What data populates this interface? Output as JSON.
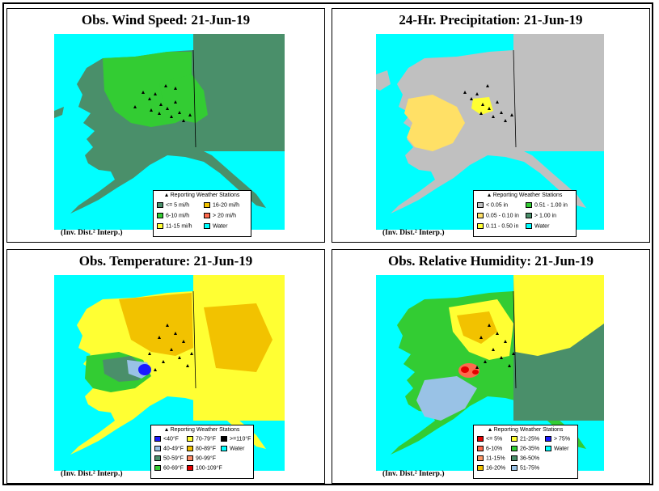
{
  "panels": [
    {
      "title": "Obs. Wind Speed:   21-Jun-19",
      "interp": "(Inv. Dist.² Interp.)",
      "legend_title": "Reporting Weather Stations",
      "legend": [
        {
          "label": "<= 5 mi/h",
          "color": "#4a8f6a"
        },
        {
          "label": "16-20 mi/h",
          "color": "#f2c200"
        },
        {
          "label": "6-10 mi/h",
          "color": "#33cc33"
        },
        {
          "label": "> 20 mi/h",
          "color": "#ff6a4d"
        },
        {
          "label": "11-15 mi/h",
          "color": "#ffff33"
        },
        {
          "label": "Water",
          "color": "#00ffff"
        }
      ]
    },
    {
      "title": "24-Hr. Precipitation:   21-Jun-19",
      "interp": "(Inv. Dist.² Interp.)",
      "legend_title": "Reporting Weather Stations",
      "legend": [
        {
          "label": "< 0.05 in",
          "color": "#c0c0c0"
        },
        {
          "label": "0.51 - 1.00 in",
          "color": "#33cc33"
        },
        {
          "label": "0.05 - 0.10 in",
          "color": "#ffe066"
        },
        {
          "label": "> 1.00 in",
          "color": "#4a8f6a"
        },
        {
          "label": "0.11 - 0.50 in",
          "color": "#ffff33"
        },
        {
          "label": "Water",
          "color": "#00ffff"
        }
      ]
    },
    {
      "title": "Obs. Temperature:   21-Jun-19",
      "interp": "(Inv. Dist.² Interp.)",
      "legend_title": "Reporting Weather Stations",
      "legend": [
        {
          "label": "<40°F",
          "color": "#1a1aff"
        },
        {
          "label": "70-79°F",
          "color": "#ffff33"
        },
        {
          "label": ">=110°F",
          "color": "#000000"
        },
        {
          "label": "40-49°F",
          "color": "#99c2e6"
        },
        {
          "label": "80-89°F",
          "color": "#f2c200"
        },
        {
          "label": "Water",
          "color": "#00ffff"
        },
        {
          "label": "50-59°F",
          "color": "#4a8f6a"
        },
        {
          "label": "90-99°F",
          "color": "#ff8c66"
        },
        {
          "label": "60-69°F",
          "color": "#33cc33"
        },
        {
          "label": "100-109°F",
          "color": "#e60000"
        }
      ]
    },
    {
      "title": "Obs. Relative Humidity:   21-Jun-19",
      "interp": "(Inv. Dist.² Interp.)",
      "legend_title": "Reporting Weather Stations",
      "legend": [
        {
          "label": "<= 5%",
          "color": "#e60000"
        },
        {
          "label": "21-25%",
          "color": "#ffff33"
        },
        {
          "label": "> 75%",
          "color": "#1a1aff"
        },
        {
          "label": "6-10%",
          "color": "#ff6a4d"
        },
        {
          "label": "26-35%",
          "color": "#33cc33"
        },
        {
          "label": "Water",
          "color": "#00ffff"
        },
        {
          "label": "11-15%",
          "color": "#ff9966"
        },
        {
          "label": "36-50%",
          "color": "#4a8f6a"
        },
        {
          "label": "16-20%",
          "color": "#f2c200"
        },
        {
          "label": "51-75%",
          "color": "#99c2e6"
        }
      ]
    }
  ]
}
